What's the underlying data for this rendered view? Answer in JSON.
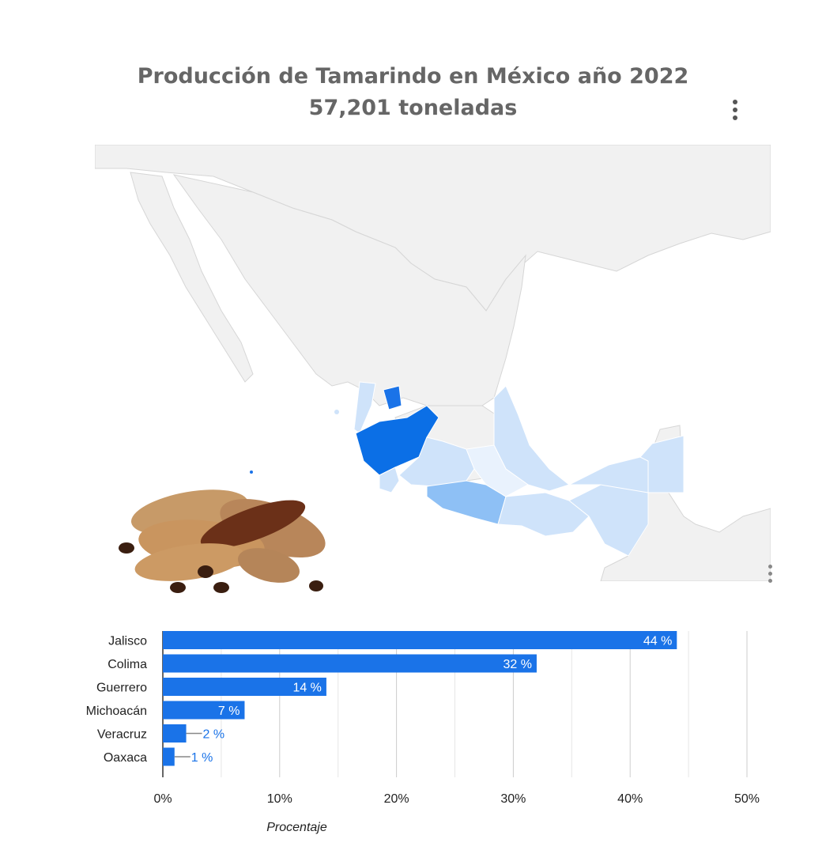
{
  "title": "Producción de Tamarindo en México año 2022",
  "subtitle": "57,201 toneladas",
  "colors": {
    "bar": "#1a73e8",
    "map_base": "#f1f1f1",
    "map_border": "#d4d4d4",
    "map_high": "#1a73e8",
    "map_mid": "#8ec0f5",
    "map_low": "#cfe3fa",
    "title": "#666666"
  },
  "icons": {
    "menu": "more-vert-icon",
    "tamarind": "tamarind-image"
  },
  "chart_data": [
    {
      "type": "map",
      "region": "Mexico",
      "values": [
        {
          "state": "Jalisco",
          "value": 44
        },
        {
          "state": "Colima",
          "value": 32
        },
        {
          "state": "Guerrero",
          "value": 14
        },
        {
          "state": "Michoacán",
          "value": 7
        },
        {
          "state": "Veracruz",
          "value": 2
        },
        {
          "state": "Oaxaca",
          "value": 1
        }
      ]
    },
    {
      "type": "bar",
      "orientation": "horizontal",
      "categories": [
        "Jalisco",
        "Colima",
        "Guerrero",
        "Michoacán",
        "Veracruz",
        "Oaxaca"
      ],
      "values": [
        44,
        32,
        14,
        7,
        2,
        1
      ],
      "value_labels": [
        "44 %",
        "32 %",
        "14 %",
        "7 %",
        "2 %",
        "1 %"
      ],
      "xlabel": "Procentaje",
      "xlim": [
        0,
        50
      ],
      "xticks": [
        "0%",
        "10%",
        "20%",
        "30%",
        "40%",
        "50%"
      ],
      "grid": true
    }
  ]
}
